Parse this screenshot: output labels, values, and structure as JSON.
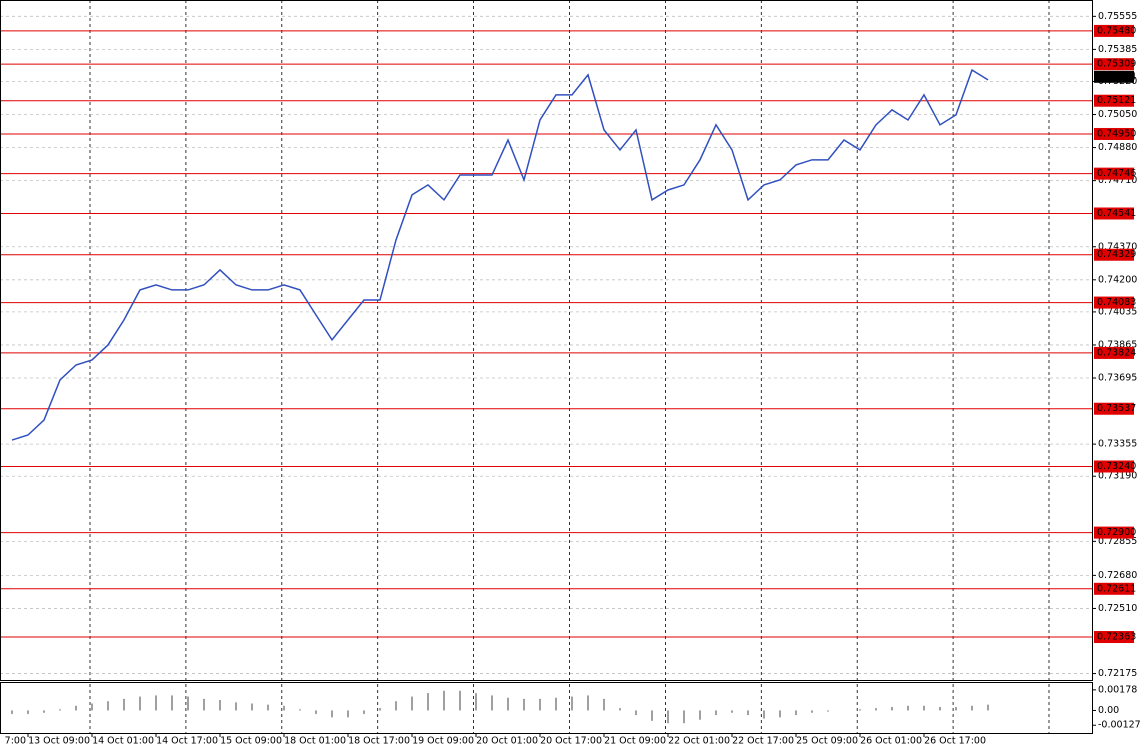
{
  "chart_data": [
    {
      "type": "line",
      "color": "#3050c0",
      "categories": [
        "7:00",
        null,
        null,
        null,
        "13 Oct 09:00",
        null,
        null,
        null,
        "14 Oct 01:00",
        null,
        null,
        null,
        "14 Oct 17:00",
        null,
        null,
        null,
        "15 Oct 09:00",
        null,
        null,
        null,
        "18 Oct 01:00",
        null,
        null,
        null,
        "18 Oct 17:00",
        null,
        null,
        null,
        "19 Oct 09:00",
        null,
        null,
        null,
        "20 Oct 01:00",
        null,
        null,
        null,
        "20 Oct 17:00",
        null,
        null,
        null,
        "21 Oct 09:00",
        null,
        null,
        null,
        "22 Oct 01:00",
        null,
        null,
        null,
        "22 Oct 17:00",
        null,
        null,
        null,
        "25 Oct 09:00",
        null,
        null,
        null,
        "26 Oct 01:00",
        null,
        null,
        null,
        "26 Oct 17:00",
        null,
        null,
        null,
        null
      ],
      "values": [
        null,
        null,
        null,
        0.73376,
        0.73402,
        0.73479,
        0.73685,
        0.73762,
        0.73788,
        0.73865,
        0.73994,
        0.74148,
        0.74174,
        0.74148,
        0.74148,
        0.74174,
        0.74251,
        0.74174,
        0.74148,
        0.74148,
        0.74174,
        0.74148,
        0.74019,
        0.73891,
        0.73994,
        0.74096,
        0.74096,
        0.74405,
        0.74637,
        0.74688,
        0.74611,
        0.74739,
        0.74739,
        0.74739,
        0.74919,
        0.74714,
        0.75022,
        0.75151,
        0.75151,
        0.75254,
        0.74971,
        0.74868,
        0.74971,
        0.74611,
        0.74662,
        0.74688,
        0.74817,
        0.74997,
        0.74868,
        0.74611,
        0.74688,
        0.74714,
        0.74791,
        0.74817,
        0.74817,
        0.74919,
        0.74868,
        0.74997,
        0.75074,
        0.75022,
        0.75151,
        0.74997,
        0.75048,
        0.75279,
        0.75228
      ],
      "ylim": [
        0.72142,
        0.75639
      ],
      "yticks": [
        0.75555,
        0.75385,
        {
          "value": 0.7522,
          "label": "0.75220"
        },
        {
          "value": 0.7505,
          "label": "0.75050"
        },
        {
          "value": 0.7488,
          "label": "0.74880"
        },
        {
          "value": 0.7471,
          "label": "0.74710"
        },
        {
          "value": 0.7437,
          "label": "0.74370"
        },
        {
          "value": 0.742,
          "label": "0.74200"
        },
        0.74035,
        0.73865,
        0.73695,
        0.73355,
        {
          "value": 0.7319,
          "label": "0.73190"
        },
        0.72855,
        {
          "value": 0.7268,
          "label": "0.72680"
        },
        {
          "value": 0.7251,
          "label": "0.72510"
        },
        0.72175
      ],
      "levels": [
        {
          "value": 0.7548,
          "label": "0.75480"
        },
        0.75309,
        0.75121,
        {
          "value": 0.7495,
          "label": "0.74950"
        },
        0.74746,
        0.74541,
        0.74329,
        0.74083,
        0.73824,
        0.73537,
        {
          "value": 0.7324,
          "label": "0.73240"
        },
        {
          "value": 0.729,
          "label": "0.72900"
        },
        0.72611,
        0.72363
      ],
      "level_color": "#e00000",
      "last_price": 0.75244,
      "grid": true
    },
    {
      "type": "histogram",
      "color": "#a0a0a0",
      "values": [
        null,
        null,
        null,
        -0.0003,
        -0.0003,
        -0.0002,
        0.0001,
        0.0004,
        0.0006,
        0.0008,
        0.001,
        0.0012,
        0.0013,
        0.0013,
        0.0012,
        0.001,
        0.0009,
        0.0007,
        0.0006,
        0.0005,
        0.0004,
        0.0001,
        -0.0003,
        -0.0006,
        -0.0006,
        -0.0003,
        0.0002,
        0.0008,
        0.0012,
        0.0015,
        0.0017,
        0.0017,
        0.0015,
        0.0013,
        0.0011,
        0.001,
        0.001,
        0.0011,
        0.0012,
        0.0013,
        0.001,
        0.0002,
        -0.0004,
        -0.0009,
        -0.0011,
        -0.0011,
        -0.0008,
        -0.0004,
        -0.0002,
        -0.0004,
        -0.0007,
        -0.0006,
        -0.0004,
        -0.0002,
        -0.0001,
        0,
        0.0001,
        0.0002,
        0.0003,
        0.0004,
        0.0004,
        0.0003,
        0.0003,
        0.0004,
        0.0005
      ],
      "ylim": [
        -0.00195,
        0.00246
      ],
      "yticks": [
        0.00178,
        {
          "value": 0,
          "label": "0.00"
        },
        -0.001278
      ]
    }
  ]
}
